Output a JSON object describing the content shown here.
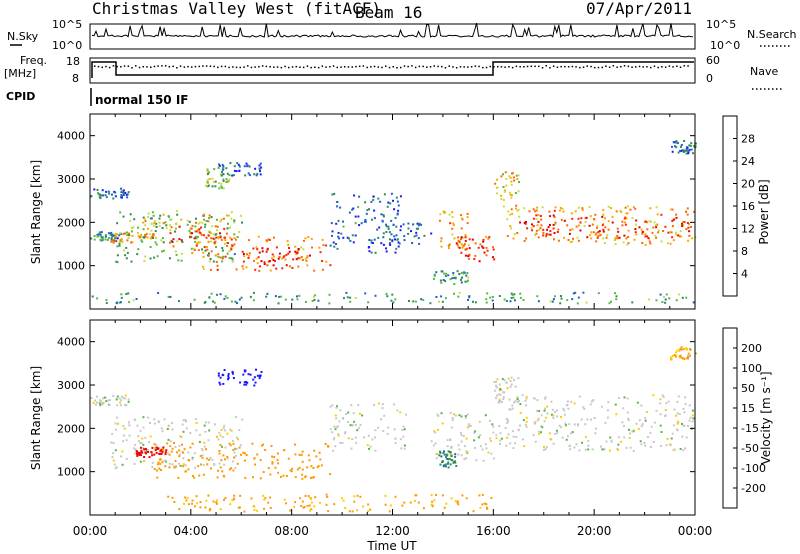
{
  "header": {
    "station": "Christmas Valley West (fitACF)",
    "beam": "Beam 16",
    "date": "07/Apr/2011"
  },
  "summary": {
    "nsky_label": "N.Sky",
    "nsearch_label": "N.Search",
    "freq_label_line1": "Freq.",
    "freq_label_line2": "[MHz]",
    "nave_label": "Nave",
    "cpid_label": "CPID",
    "cpid_value": "normal 150 IF",
    "noise_ticks": [
      "10^5",
      "10^0"
    ],
    "freq_ticks": [
      "18",
      "8"
    ],
    "nave_ticks": [
      "60",
      "0"
    ]
  },
  "colors": {
    "power_scale": [
      "#1a1aff",
      "#1f5fd0",
      "#2e8b57",
      "#55b840",
      "#c8dc3c",
      "#ffa500",
      "#ff6a00",
      "#ff2000",
      "#dd0000"
    ],
    "velocity_scale": [
      "#1a1aff",
      "#1f5fd0",
      "#2e8b57",
      "#55b840",
      "#c8c8c8",
      "#ffcc00",
      "#ff9900",
      "#ff5500",
      "#ee0000"
    ]
  },
  "chart_data": [
    {
      "type": "heatmap",
      "name": "power",
      "ylabel": "Slant Range [km]",
      "xlim": [
        "00:00",
        "24:00"
      ],
      "ylim": [
        0,
        4500
      ],
      "y_ticks": [
        1000,
        2000,
        3000,
        4000
      ],
      "colorbar": {
        "label": "Power [dB]",
        "range": [
          0,
          32
        ],
        "ticks": [
          4,
          8,
          12,
          16,
          20,
          24,
          28
        ]
      },
      "regions": [
        {
          "t0": 0.0,
          "t1": 1.5,
          "r0": 2550,
          "r1": 2800,
          "level": 6
        },
        {
          "t0": 0.0,
          "t1": 1.2,
          "r0": 1600,
          "r1": 1800,
          "level": 8
        },
        {
          "t0": 0.8,
          "t1": 2.5,
          "r0": 1550,
          "r1": 1800,
          "level": 20
        },
        {
          "t0": 1.0,
          "t1": 6.0,
          "r0": 1100,
          "r1": 2300,
          "level": 12
        },
        {
          "t0": 2.0,
          "t1": 5.5,
          "r0": 1750,
          "r1": 2200,
          "level": 18
        },
        {
          "t0": 3.0,
          "t1": 5.5,
          "r0": 1450,
          "r1": 1950,
          "level": 26
        },
        {
          "t0": 4.0,
          "t1": 9.5,
          "r0": 900,
          "r1": 1700,
          "level": 22
        },
        {
          "t0": 6.0,
          "t1": 8.7,
          "r0": 1000,
          "r1": 1450,
          "level": 28
        },
        {
          "t0": 4.5,
          "t1": 5.5,
          "r0": 2800,
          "r1": 3300,
          "level": 14
        },
        {
          "t0": 5.0,
          "t1": 6.8,
          "r0": 3100,
          "r1": 3400,
          "level": 6
        },
        {
          "t0": 9.5,
          "t1": 12.5,
          "r0": 1300,
          "r1": 2700,
          "level": 6
        },
        {
          "t0": 11.5,
          "t1": 13.5,
          "r0": 1500,
          "r1": 2000,
          "level": 5
        },
        {
          "t0": 13.8,
          "t1": 15.0,
          "r0": 1400,
          "r1": 2300,
          "level": 20
        },
        {
          "t0": 14.5,
          "t1": 16.0,
          "r0": 1100,
          "r1": 1700,
          "level": 26
        },
        {
          "t0": 13.5,
          "t1": 15.0,
          "r0": 600,
          "r1": 900,
          "level": 10
        },
        {
          "t0": 16.0,
          "t1": 17.0,
          "r0": 2200,
          "r1": 3200,
          "level": 18
        },
        {
          "t0": 16.5,
          "t1": 24.0,
          "r0": 1500,
          "r1": 2400,
          "level": 20
        },
        {
          "t0": 17.0,
          "t1": 24.0,
          "r0": 1650,
          "r1": 2200,
          "level": 27
        },
        {
          "t0": 23.0,
          "t1": 24.0,
          "r0": 3600,
          "r1": 3900,
          "level": 6
        },
        {
          "t0": 0.0,
          "t1": 24.0,
          "r0": 150,
          "r1": 400,
          "level": 10
        }
      ]
    },
    {
      "type": "heatmap",
      "name": "velocity",
      "ylabel": "Slant Range [km]",
      "xlabel": "Time UT",
      "xlim": [
        "00:00",
        "24:00"
      ],
      "ylim": [
        0,
        4500
      ],
      "x_ticks": [
        "00:00",
        "04:00",
        "08:00",
        "12:00",
        "16:00",
        "20:00",
        "00:00"
      ],
      "y_ticks": [
        1000,
        2000,
        3000,
        4000
      ],
      "colorbar": {
        "label": "Velocity [m s⁻¹]",
        "ticks": [
          "200",
          "100",
          "50",
          "15",
          "-15",
          "-50",
          "-100",
          "-200"
        ]
      },
      "regions": [
        {
          "t0": 0.0,
          "t1": 1.5,
          "r0": 2550,
          "r1": 2800,
          "vel": 0
        },
        {
          "t0": 0.8,
          "t1": 6.0,
          "r0": 1100,
          "r1": 2300,
          "vel": 0
        },
        {
          "t0": 2.5,
          "t1": 9.5,
          "r0": 850,
          "r1": 1700,
          "vel": -55
        },
        {
          "t0": 1.8,
          "t1": 3.0,
          "r0": 1350,
          "r1": 1600,
          "vel": -180
        },
        {
          "t0": 5.0,
          "t1": 6.8,
          "r0": 3000,
          "r1": 3400,
          "vel": 220
        },
        {
          "t0": 9.5,
          "t1": 12.5,
          "r0": 1500,
          "r1": 2600,
          "vel": 0
        },
        {
          "t0": 13.5,
          "t1": 16.0,
          "r0": 1200,
          "r1": 2400,
          "vel": 0
        },
        {
          "t0": 13.8,
          "t1": 14.5,
          "r0": 1100,
          "r1": 1500,
          "vel": 60
        },
        {
          "t0": 16.0,
          "t1": 24.0,
          "r0": 1500,
          "r1": 2800,
          "vel": 0
        },
        {
          "t0": 16.0,
          "t1": 17.0,
          "r0": 2600,
          "r1": 3200,
          "vel": 0
        },
        {
          "t0": 23.0,
          "t1": 24.0,
          "r0": 3600,
          "r1": 3900,
          "vel": -30
        },
        {
          "t0": 3.0,
          "t1": 16.0,
          "r0": 100,
          "r1": 500,
          "vel": -40
        }
      ]
    }
  ]
}
